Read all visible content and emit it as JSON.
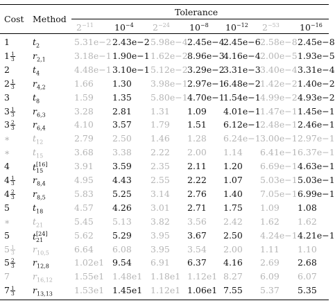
{
  "header": {
    "cost": "Cost",
    "method": "Method",
    "tolerance": "Tolerance",
    "columns": [
      {
        "base": "2",
        "exp": "−11",
        "gray": true
      },
      {
        "base": "10",
        "exp": "−4",
        "gray": false
      },
      {
        "base": "2",
        "exp": "−24",
        "gray": true
      },
      {
        "base": "10",
        "exp": "−8",
        "gray": false
      },
      {
        "base": "10",
        "exp": "−12",
        "gray": false
      },
      {
        "base": "2",
        "exp": "−53",
        "gray": true
      },
      {
        "base": "10",
        "exp": "−16",
        "gray": false
      }
    ]
  },
  "rows": [
    {
      "cost": {
        "whole": "1"
      },
      "method": {
        "base": "t",
        "sub": "2"
      },
      "dim": false,
      "values": [
        "5.31e−2",
        "2.43e−2",
        "5.98e−4",
        "2.45e−4",
        "2.45e−6",
        "2.58e−8",
        "2.45e−8"
      ]
    },
    {
      "cost": {
        "whole": "1",
        "num": "1",
        "den": "3"
      },
      "method": {
        "base": "r",
        "sub": "2,1"
      },
      "dim": false,
      "values": [
        "3.18e−1",
        "1.90e−1",
        "1.62e−2",
        "8.96e−3",
        "4.16e−4",
        "2.00e−5",
        "1.93e−5"
      ]
    },
    {
      "cost": {
        "whole": "2"
      },
      "method": {
        "base": "t",
        "sub": "4"
      },
      "dim": false,
      "values": [
        "4.48e−1",
        "3.10e−1",
        "5.12e−2",
        "3.29e−2",
        "3.31e−3",
        "3.40e−4",
        "3.31e−4"
      ]
    },
    {
      "cost": {
        "whole": "2",
        "num": "1",
        "den": "3"
      },
      "method": {
        "base": "r",
        "sub": "4,2"
      },
      "dim": false,
      "values": [
        "1.66",
        "1.30",
        "3.98e−1",
        "2.97e−1",
        "6.48e−2",
        "1.42e−2",
        "1.40e−2"
      ]
    },
    {
      "cost": {
        "whole": "3"
      },
      "method": {
        "base": "t",
        "sub": "8"
      },
      "dim": false,
      "values": [
        "1.59",
        "1.35",
        "5.80e−1",
        "4.70e−1",
        "1.54e−1",
        "4.99e−2",
        "4.93e−2"
      ]
    },
    {
      "cost": {
        "whole": "3",
        "num": "1",
        "den": "3"
      },
      "method": {
        "base": "r",
        "sub": "6,3"
      },
      "dim": false,
      "values": [
        "3.28",
        "2.81",
        "1.31",
        "1.09",
        "4.01e−1",
        "1.47e−1",
        "1.45e−1"
      ]
    },
    {
      "cost": {
        "whole": "3",
        "num": "2",
        "den": "3"
      },
      "method": {
        "base": "r",
        "sub": "6,4"
      },
      "dim": false,
      "values": [
        "4.10",
        "3.57",
        "1.79",
        "1.51",
        "6.12e−1",
        "2.48e−1",
        "2.46e−1"
      ]
    },
    {
      "cost": {
        "whole": "∗"
      },
      "method": {
        "base": "t",
        "sub": "12"
      },
      "dim": true,
      "values": [
        "2.79",
        "2.50",
        "1.46",
        "1.28",
        "6.24e−1",
        "3.00e−1",
        "2.97e−1"
      ]
    },
    {
      "cost": {
        "whole": "∗"
      },
      "method": {
        "base": "t",
        "sub": "15"
      },
      "dim": true,
      "values": [
        "3.68",
        "3.38",
        "2.22",
        "2.00",
        "1.14",
        "6.41e−1",
        "6.37e−1"
      ]
    },
    {
      "cost": {
        "whole": "4"
      },
      "method": {
        "base": "t",
        "sub": "15",
        "sup": "[16]"
      },
      "dim": false,
      "values": [
        "3.91",
        "3.59",
        "2.35",
        "2.11",
        "1.20",
        "6.69e−1",
        "4.63e−1"
      ]
    },
    {
      "cost": {
        "whole": "4",
        "num": "1",
        "den": "3"
      },
      "method": {
        "base": "r",
        "sub": "8,4"
      },
      "dim": false,
      "values": [
        "4.95",
        "4.43",
        "2.55",
        "2.22",
        "1.07",
        "5.03e−1",
        "5.03e−1"
      ]
    },
    {
      "cost": {
        "whole": "4",
        "num": "2",
        "den": "3"
      },
      "method": {
        "base": "r",
        "sub": "8,5"
      },
      "dim": false,
      "values": [
        "5.83",
        "5.25",
        "3.14",
        "2.76",
        "1.40",
        "7.05e−1",
        "6.99e−1"
      ]
    },
    {
      "cost": {
        "whole": "5"
      },
      "method": {
        "base": "t",
        "sub": "18"
      },
      "dim": false,
      "values": [
        "4.57",
        "4.26",
        "3.01",
        "2.71",
        "1.75",
        "1.09",
        "1.08"
      ]
    },
    {
      "cost": {
        "whole": "∗"
      },
      "method": {
        "base": "t",
        "sub": "21"
      },
      "dim": true,
      "values": [
        "5.45",
        "5.13",
        "3.82",
        "3.56",
        "2.42",
        "1.62",
        "1.62"
      ]
    },
    {
      "cost": {
        "whole": "5"
      },
      "method": {
        "base": "t",
        "sub": "21",
        "sup": "[24]"
      },
      "dim": false,
      "values": [
        "5.62",
        "5.29",
        "3.95",
        "3.67",
        "2.50",
        "4.24e−1",
        "4.21e−1"
      ]
    },
    {
      "cost": {
        "whole": "5",
        "num": "1",
        "den": "3"
      },
      "method": {
        "base": "r",
        "sub": "10,5"
      },
      "dim": true,
      "values": [
        "6.64",
        "6.08",
        "3.95",
        "3.54",
        "2.00",
        "1.11",
        "1.10"
      ]
    },
    {
      "cost": {
        "whole": "5",
        "num": "2",
        "den": "3"
      },
      "method": {
        "base": "r",
        "sub": "12,8"
      },
      "dim": false,
      "values": [
        "1.02e1",
        "9.54",
        "6.91",
        "6.37",
        "4.16",
        "2.69",
        "2.68"
      ]
    },
    {
      "cost": {
        "whole": "7"
      },
      "method": {
        "base": "r",
        "sub": "16,12"
      },
      "dim": true,
      "values": [
        "1.55e1",
        "1.48e1",
        "1.18e1",
        "1.12e1",
        "8.27",
        "6.09",
        "6.07"
      ]
    },
    {
      "cost": {
        "whole": "7",
        "num": "1",
        "den": "3"
      },
      "method": {
        "base": "r",
        "sub": "13,13"
      },
      "dim": false,
      "values": [
        "1.53e1",
        "1.45e1",
        "1.12e1",
        "1.06e1",
        "7.55",
        "5.37",
        "5.35"
      ]
    }
  ]
}
